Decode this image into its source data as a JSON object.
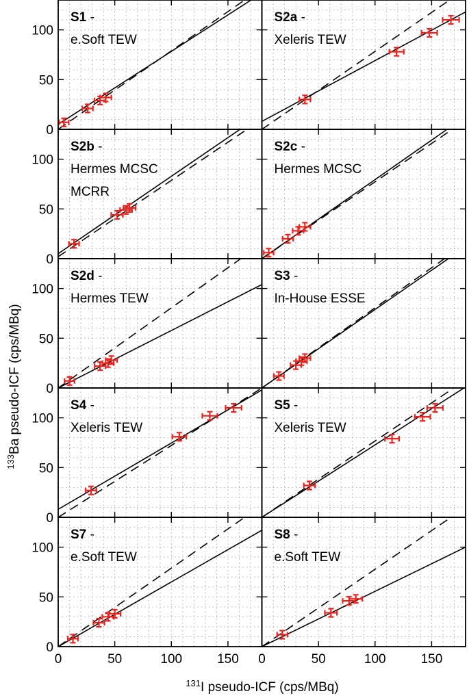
{
  "chart_data": {
    "type": "scatter",
    "layout": "5 rows x 2 columns, shared axes",
    "xlabel_sup": "131",
    "xlabel_rest": "I pseudo-ICF (cps/MBq)",
    "ylabel_sup": "133",
    "ylabel_rest": "Ba pseudo-ICF (cps/MBq)",
    "xlim": [
      0,
      180
    ],
    "ylim": [
      0,
      130
    ],
    "xticks": [
      0,
      50,
      100,
      150
    ],
    "yticks": [
      0,
      50,
      100
    ],
    "grid": "dotted",
    "colors": {
      "points": "#e8261f",
      "lines": "#000000",
      "grid": "#aaaaaa"
    },
    "line_styles": {
      "solid": "fit",
      "dashed": "reference"
    },
    "panels": [
      {
        "id": "S1",
        "label_lines": [
          "e.Soft TEW"
        ],
        "fit": [
          0,
          5,
          180,
          137
        ],
        "ref": [
          0,
          0,
          180,
          142
        ],
        "points": [
          [
            5,
            7
          ],
          [
            26,
            21
          ],
          [
            37,
            29
          ],
          [
            42,
            32
          ]
        ]
      },
      {
        "id": "S2a",
        "label_lines": [
          "Xeleris TEW"
        ],
        "fit": [
          0,
          8,
          180,
          118
        ],
        "ref": [
          0,
          0,
          180,
          141
        ],
        "points": [
          [
            38,
            30
          ],
          [
            119,
            78
          ],
          [
            148,
            97
          ],
          [
            167,
            110
          ]
        ]
      },
      {
        "id": "S2b",
        "label_lines": [
          "Hermes MCSC",
          "MCRR"
        ],
        "fit": [
          0,
          5,
          180,
          145
        ],
        "ref": [
          0,
          2,
          180,
          140
        ],
        "points": [
          [
            14,
            15
          ],
          [
            52,
            44
          ],
          [
            60,
            49
          ],
          [
            63,
            51
          ]
        ]
      },
      {
        "id": "S2c",
        "label_lines": [
          "Hermes MCSC"
        ],
        "fit": [
          0,
          0,
          180,
          143
        ],
        "ref": [
          0,
          0,
          180,
          139
        ],
        "points": [
          [
            6,
            6
          ],
          [
            23,
            20
          ],
          [
            32,
            28
          ],
          [
            38,
            32
          ]
        ]
      },
      {
        "id": "S2d",
        "label_lines": [
          "Hermes TEW"
        ],
        "fit": [
          0,
          0,
          180,
          104
        ],
        "ref": [
          0,
          0,
          180,
          145
        ],
        "points": [
          [
            10,
            7
          ],
          [
            37,
            22
          ],
          [
            44,
            25
          ],
          [
            47,
            28
          ]
        ]
      },
      {
        "id": "S3",
        "label_lines": [
          "In-House ESSE"
        ],
        "fit": [
          0,
          0,
          180,
          142
        ],
        "ref": [
          0,
          0,
          180,
          145
        ],
        "points": [
          [
            15,
            12
          ],
          [
            30,
            23
          ],
          [
            35,
            27
          ],
          [
            38,
            30
          ]
        ]
      },
      {
        "id": "S4",
        "label_lines": [
          "Xeleris TEW"
        ],
        "fit": [
          0,
          8,
          180,
          128
        ],
        "ref": [
          0,
          0,
          180,
          130
        ],
        "points": [
          [
            29,
            27
          ],
          [
            107,
            81
          ],
          [
            134,
            102
          ],
          [
            155,
            110
          ]
        ]
      },
      {
        "id": "S5",
        "label_lines": [
          "Xeleris TEW"
        ],
        "fit": [
          0,
          0,
          180,
          131
        ],
        "ref": [
          0,
          0,
          180,
          138
        ],
        "points": [
          [
            42,
            32
          ],
          [
            115,
            79
          ],
          [
            142,
            101
          ],
          [
            153,
            110
          ]
        ]
      },
      {
        "id": "S7",
        "label_lines": [
          "e.Soft TEW"
        ],
        "fit": [
          0,
          0,
          180,
          117
        ],
        "ref": [
          0,
          0,
          180,
          142
        ],
        "points": [
          [
            13,
            8
          ],
          [
            36,
            24
          ],
          [
            44,
            30
          ],
          [
            50,
            33
          ]
        ]
      },
      {
        "id": "S8",
        "label_lines": [
          "e.Soft TEW"
        ],
        "fit": [
          0,
          0,
          180,
          100
        ],
        "ref": [
          0,
          0,
          180,
          140
        ],
        "points": [
          [
            18,
            12
          ],
          [
            61,
            34
          ],
          [
            77,
            46
          ],
          [
            83,
            48
          ]
        ]
      }
    ]
  }
}
